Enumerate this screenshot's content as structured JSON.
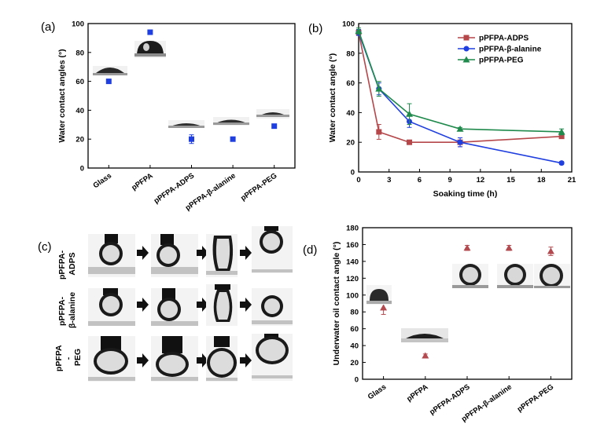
{
  "panels": {
    "a": "(a)",
    "b": "(b)",
    "c": "(c)",
    "d": "(d)"
  },
  "colors": {
    "blue": "#1f3fe0",
    "red": "#b5474a",
    "green": "#1f8a4c",
    "triangle": "#b34a50"
  },
  "row_labels": {
    "row1": [
      "pPFPA-",
      "ADPS"
    ],
    "row2": [
      "pPFPA-",
      "β-alanine"
    ],
    "row3": [
      "pPFPA",
      "-",
      "PEG"
    ]
  },
  "chart_data": [
    {
      "id": "a",
      "type": "scatter",
      "ylabel": "Water contact angles (°)",
      "categories": [
        "Glass",
        "pPFPA",
        "pPFPA-ADPS",
        "pPFPA-β-alanine",
        "pPFPA-PEG"
      ],
      "values": [
        60,
        94,
        20,
        20,
        29
      ],
      "errors": [
        0,
        0,
        3,
        0,
        0
      ],
      "ylim": [
        0,
        100
      ],
      "yticks": [
        0,
        20,
        40,
        60,
        80,
        100
      ],
      "marker": "square"
    },
    {
      "id": "b",
      "type": "line",
      "xlabel": "Soaking time (h)",
      "ylabel": "Water contact angle (°)",
      "xlim": [
        0,
        21
      ],
      "ylim": [
        0,
        100
      ],
      "xticks": [
        0,
        3,
        6,
        9,
        12,
        15,
        18,
        21
      ],
      "yticks": [
        0,
        20,
        40,
        60,
        80,
        100
      ],
      "legend_position": "top-right",
      "series": [
        {
          "name": "pPFPA-ADPS",
          "color": "#b5474a",
          "marker": "square",
          "x": [
            0,
            2,
            5,
            10,
            20
          ],
          "y": [
            94,
            27,
            20,
            20,
            24
          ],
          "err": [
            2,
            5,
            1,
            3,
            1
          ]
        },
        {
          "name": "pPFPA-β-alanine",
          "color": "#1f3fe0",
          "marker": "circle",
          "x": [
            0,
            2,
            5,
            10,
            20
          ],
          "y": [
            94,
            56,
            34,
            20,
            6
          ],
          "err": [
            2,
            4,
            4,
            3,
            1
          ]
        },
        {
          "name": "pPFPA-PEG",
          "color": "#1f8a4c",
          "marker": "triangle",
          "x": [
            0,
            2,
            5,
            10,
            20
          ],
          "y": [
            95,
            56,
            39,
            29,
            27
          ],
          "err": [
            2,
            5,
            7,
            1,
            2
          ]
        }
      ]
    },
    {
      "id": "d",
      "type": "scatter",
      "ylabel": "Underwater oil contact angle (°)",
      "categories": [
        "Glass",
        "pPFPA",
        "pPFPA-ADPS",
        "pPFPA-β-alanine",
        "pPFPA-PEG"
      ],
      "values": [
        85,
        28,
        156,
        156,
        152
      ],
      "errors": [
        8,
        2,
        3,
        3,
        5
      ],
      "ylim": [
        0,
        180
      ],
      "yticks": [
        0,
        20,
        40,
        60,
        80,
        100,
        120,
        140,
        160,
        180
      ],
      "marker": "triangle"
    }
  ]
}
